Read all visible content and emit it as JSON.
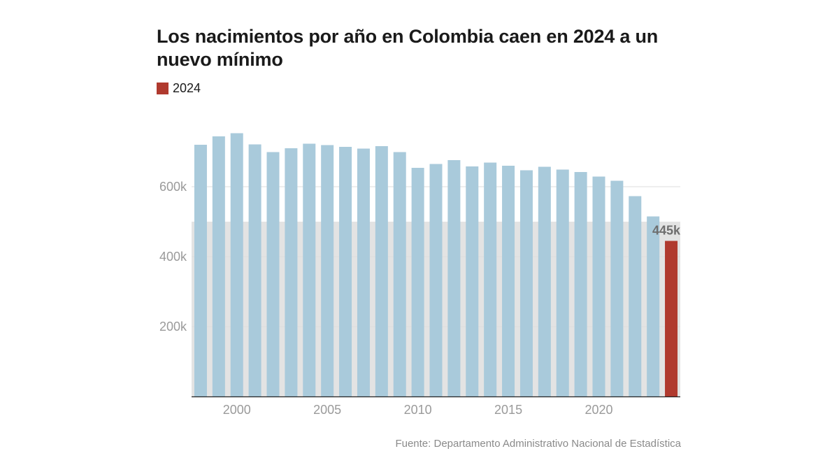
{
  "title": "Los nacimientos por año en Colombia caen en 2024 a un nuevo mínimo",
  "legend": {
    "label": "2024",
    "color": "#b03a2e"
  },
  "source": "Fuente: Departamento Administrativo Nacional de Estadística",
  "chart_data": {
    "type": "bar",
    "title": "Los nacimientos por año en Colombia caen en 2024 a un nuevo mínimo",
    "xlabel": "",
    "ylabel": "",
    "ylim": [
      0,
      700000
    ],
    "grid": true,
    "legend_placement": "top-left",
    "x": [
      1998,
      1999,
      2000,
      2001,
      2002,
      2003,
      2004,
      2005,
      2006,
      2007,
      2008,
      2009,
      2010,
      2011,
      2012,
      2013,
      2014,
      2015,
      2016,
      2017,
      2018,
      2019,
      2020,
      2021,
      2022,
      2023,
      2024
    ],
    "values": [
      720000,
      744000,
      753000,
      721000,
      699000,
      710000,
      723000,
      719000,
      714000,
      709000,
      716000,
      699000,
      654000,
      665000,
      676000,
      658000,
      669000,
      660000,
      647000,
      657000,
      649000,
      642000,
      629000,
      617000,
      573000,
      515000,
      445000
    ],
    "highlight_index": 26,
    "highlight_label": "445k",
    "y_ticks": [
      200000,
      400000,
      600000
    ],
    "y_tick_labels": [
      "200k",
      "400k",
      "600k"
    ],
    "x_ticks": [
      2000,
      2005,
      2010,
      2015,
      2020
    ],
    "x_tick_labels": [
      "2000",
      "2005",
      "2010",
      "2015",
      "2020"
    ],
    "shaded_band_max": 500000,
    "colors": {
      "bar": "#a9cadb",
      "highlight": "#b03a2e",
      "band": "#e3e3e3",
      "grid": "#dddddd",
      "axis": "#222222"
    }
  }
}
